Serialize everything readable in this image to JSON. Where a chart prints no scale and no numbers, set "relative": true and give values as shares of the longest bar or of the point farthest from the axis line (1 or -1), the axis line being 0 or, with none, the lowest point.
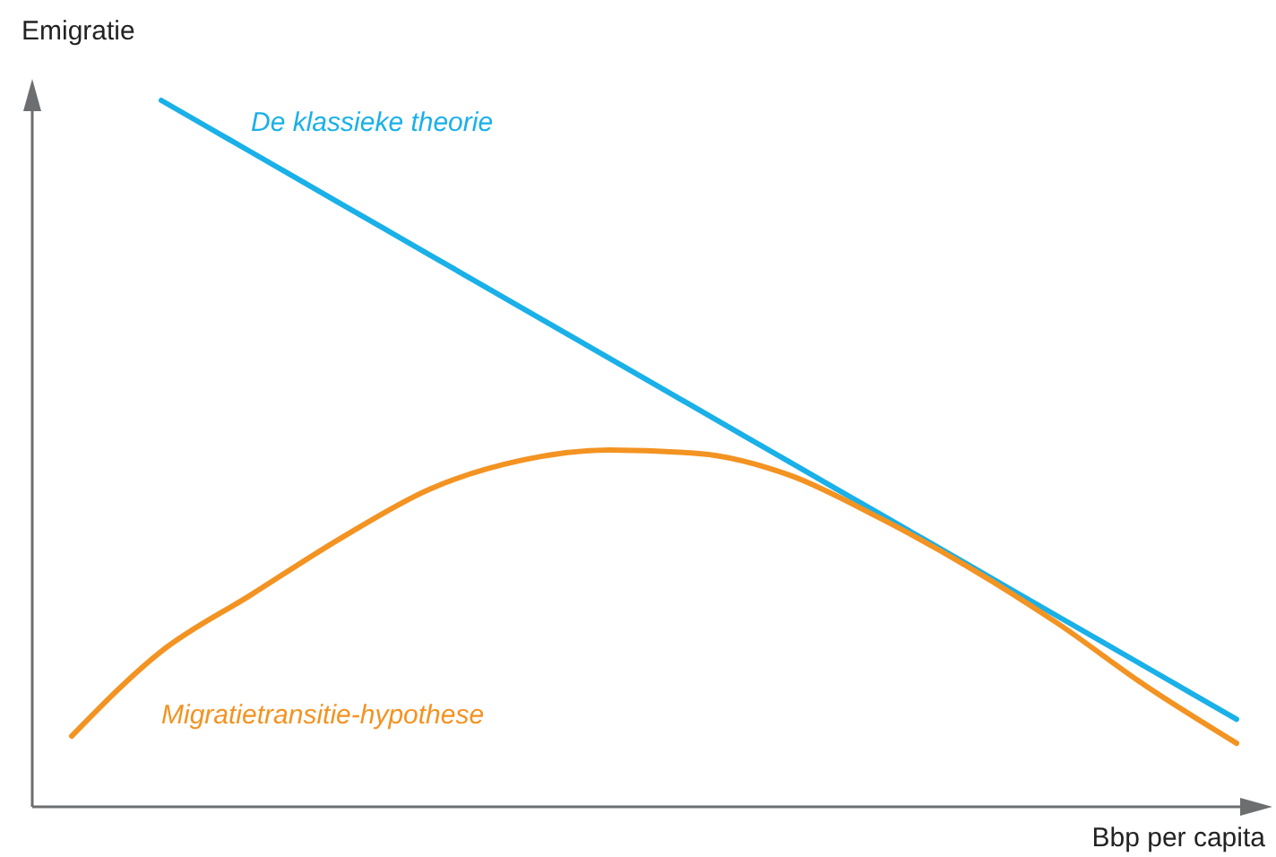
{
  "chart_data": {
    "type": "line",
    "relative": true,
    "xlabel": "Bbp per capita",
    "ylabel": "Emigratie",
    "categories": [
      null,
      null,
      null,
      null,
      null,
      null,
      null,
      null,
      null,
      null,
      null,
      null,
      null,
      null
    ],
    "series": [
      {
        "name": "De klassieke theorie",
        "color": "#1ab0e8",
        "values": [
          null,
          1,
          0.927,
          0.854,
          0.781,
          0.708,
          0.635,
          0.562,
          0.489,
          0.416,
          0.343,
          0.27,
          0.197,
          0.124
        ]
      },
      {
        "name": "Migratietransitie-hypothese",
        "color": "#f39322",
        "values": [
          0.1,
          0.22,
          0.3,
          0.38,
          0.45,
          0.49,
          0.505,
          0.5,
          0.47,
          0.41,
          0.34,
          0.26,
          0.17,
          0.09
        ]
      }
    ],
    "marker": "none",
    "line_style": "solid"
  }
}
